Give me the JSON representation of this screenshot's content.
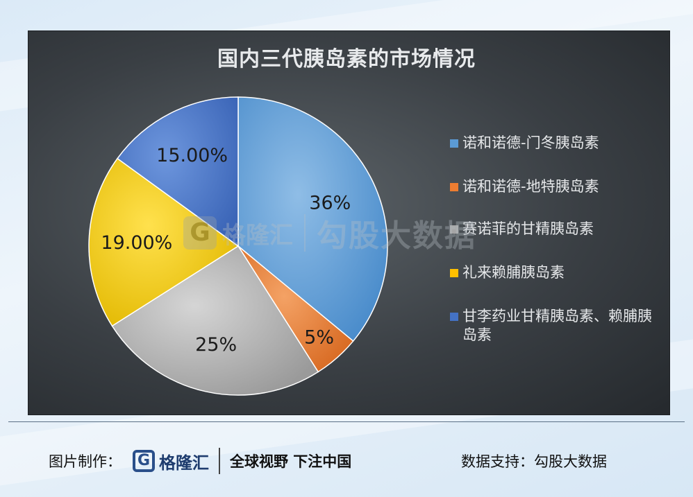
{
  "chart_data": {
    "type": "pie",
    "title": "国内三代胰岛素的市场情况",
    "slices": [
      {
        "label": "诺和诺德-门冬胰岛素",
        "value": 36,
        "display": "36%",
        "color": "#5b9bd5"
      },
      {
        "label": "诺和诺德-地特胰岛素",
        "value": 5,
        "display": "5%",
        "color": "#ed7d31"
      },
      {
        "label": "赛诺菲的甘精胰岛素",
        "value": 25,
        "display": "25%",
        "color": "#a5a5a5"
      },
      {
        "label": "礼来赖脯胰岛素",
        "value": 19,
        "display": "19.00%",
        "color": "#ffc000"
      },
      {
        "label": "甘李药业甘精胰岛素、赖脯胰岛素",
        "value": 15,
        "display": "15.00%",
        "color": "#4472c4"
      }
    ],
    "legend_position": "right"
  },
  "watermark": {
    "mark": "G",
    "name": "格隆汇",
    "brand": "勾股大数据"
  },
  "footer": {
    "made_by_label": "图片制作：",
    "logo_mark": "G",
    "logo_name": "格隆汇",
    "slogan": "全球视野 下注中国",
    "data_support": "数据支持：勾股大数据"
  }
}
